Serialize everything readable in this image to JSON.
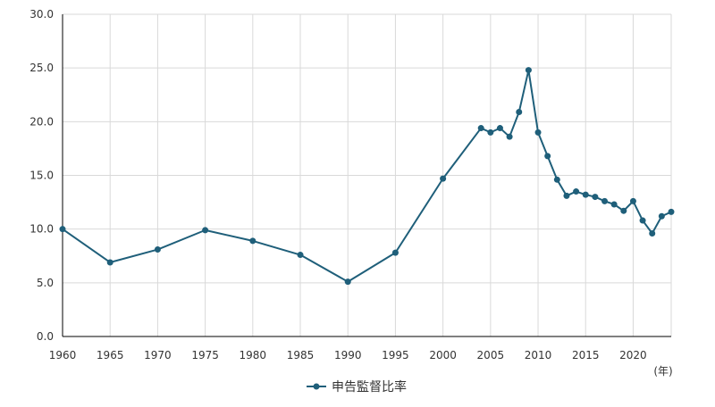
{
  "chart_data": {
    "type": "line",
    "title": "",
    "xlabel": "",
    "ylabel": "",
    "x_unit_label": "(年)",
    "xlim": [
      1960,
      2024
    ],
    "ylim": [
      0,
      30
    ],
    "y_ticks": [
      "0.0",
      "5.0",
      "10.0",
      "15.0",
      "20.0",
      "25.0",
      "30.0"
    ],
    "x_ticks": [
      "1960",
      "1965",
      "1970",
      "1975",
      "1980",
      "1985",
      "1990",
      "1995",
      "2000",
      "2005",
      "2010",
      "2015",
      "2020"
    ],
    "grid": true,
    "legend_position": "bottom",
    "colors": {
      "series": "#1f5f7a",
      "grid": "#d9d9d9",
      "text": "#333333"
    },
    "series": [
      {
        "name": "申告監督比率",
        "points": [
          [
            1960,
            10.0
          ],
          [
            1965,
            6.9
          ],
          [
            1970,
            8.1
          ],
          [
            1975,
            9.9
          ],
          [
            1980,
            8.9
          ],
          [
            1985,
            7.6
          ],
          [
            1990,
            5.1
          ],
          [
            1995,
            7.8
          ],
          [
            2000,
            14.7
          ],
          [
            2004,
            19.4
          ],
          [
            2005,
            19.0
          ],
          [
            2006,
            19.4
          ],
          [
            2007,
            18.6
          ],
          [
            2008,
            20.9
          ],
          [
            2009,
            24.8
          ],
          [
            2010,
            19.0
          ],
          [
            2011,
            16.8
          ],
          [
            2012,
            14.6
          ],
          [
            2013,
            13.1
          ],
          [
            2014,
            13.5
          ],
          [
            2015,
            13.2
          ],
          [
            2016,
            13.0
          ],
          [
            2017,
            12.6
          ],
          [
            2018,
            12.3
          ],
          [
            2019,
            11.7
          ],
          [
            2020,
            12.6
          ],
          [
            2021,
            10.8
          ],
          [
            2022,
            9.6
          ],
          [
            2023,
            11.2
          ],
          [
            2024,
            11.6
          ]
        ]
      }
    ]
  }
}
